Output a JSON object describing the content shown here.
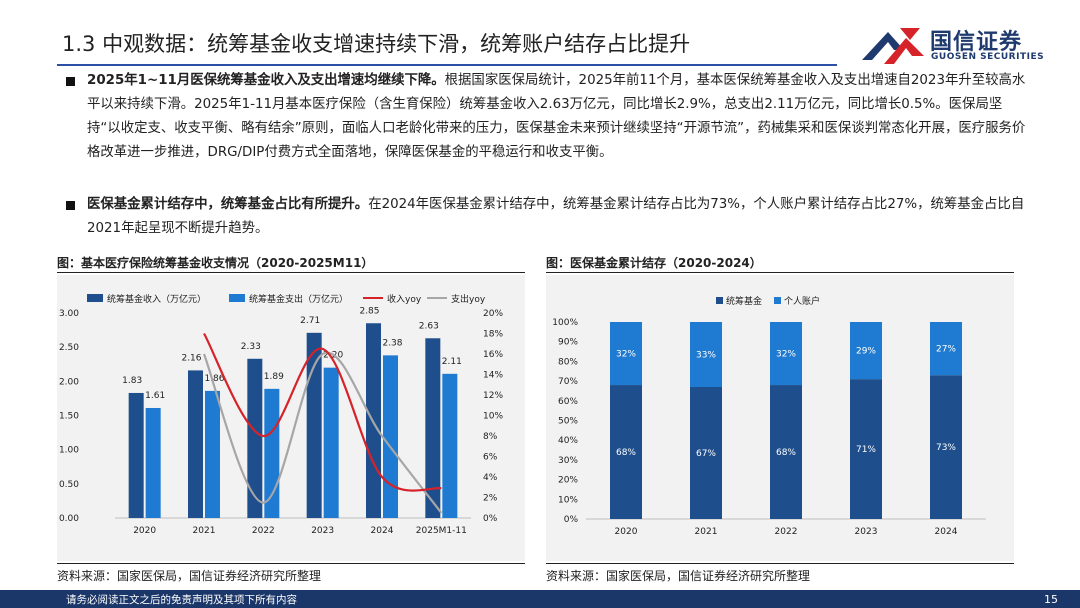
{
  "header": {
    "title": "1.3 中观数据：统筹基金收支增速持续下滑，统筹账户结存占比提升",
    "logo_cn": "国信证券",
    "logo_en": "GUOSEN SECURITIES"
  },
  "bullets": [
    {
      "bold": "2025年1~11月医保统筹基金收入及支出增速均继续下降。",
      "text": "根据国家医保局统计，2025年前11个月，基本医保统筹基金收入及支出增速自2023年升至较高水平以来持续下滑。2025年1-11月基本医疗保险（含生育保险）统筹基金收入2.63万亿元，同比增长2.9%，总支出2.11万亿元，同比增长0.5%。医保局坚持“以收定支、收支平衡、略有结余”原则，面临人口老龄化带来的压力，医保基金未来预计继续坚持“开源节流”，药械集采和医保谈判常态化开展，医疗服务价格改革进一步推进，DRG/DIP付费方式全面落地，保障医保基金的平稳运行和收支平衡。"
    },
    {
      "bold": "医保基金累计结存中，统筹基金占比有所提升。",
      "text": "在2024年医保基金累计结存中，统筹基金累计结存占比为73%，个人账户累计结存占比27%，统筹基金占比自2021年起呈现不断提升趋势。"
    }
  ],
  "figures": {
    "left_title": "图：基本医疗保险统筹基金收支情况（2020-2025M11）",
    "right_title": "图：医保基金累计结存（2020-2024）",
    "left_source": "资料来源：国家医保局，国信证券经济研究所整理",
    "right_source": "资料来源：国家医保局，国信证券经济研究所整理"
  },
  "footer": {
    "note": "请务必阅读正文之后的免责声明及其项下所有内容",
    "page": "15"
  },
  "colors": {
    "navy": "#1f4e8c",
    "blue": "#1f7ad1",
    "red": "#d6232a",
    "gray": "#a6a6a6",
    "title_rule": "#2b4fa3",
    "footer": "#1b3668"
  },
  "chart_data": [
    {
      "type": "bar",
      "title": "图：基本医疗保险统筹基金收支情况（2020-2025M11）",
      "categories": [
        "2020",
        "2021",
        "2022",
        "2023",
        "2024",
        "2025M1-11"
      ],
      "series": [
        {
          "name": "统筹基金收入（万亿元）",
          "axis": "left",
          "kind": "bar",
          "values": [
            1.83,
            2.16,
            2.33,
            2.71,
            2.85,
            2.63
          ],
          "labels": [
            "1.83",
            "2.16",
            "2.33",
            "2.71",
            "2.85",
            "2.63"
          ]
        },
        {
          "name": "统筹基金支出（万亿元）",
          "axis": "left",
          "kind": "bar",
          "values": [
            1.61,
            1.86,
            1.89,
            2.2,
            2.38,
            2.11
          ],
          "labels": [
            "1.61",
            "1.86",
            "1.89",
            "2.20",
            "2.38",
            "2.11"
          ]
        },
        {
          "name": "收入yoy",
          "axis": "right",
          "kind": "line",
          "values": [
            null,
            18.0,
            8.0,
            16.5,
            4.0,
            2.9
          ]
        },
        {
          "name": "支出yoy",
          "axis": "right",
          "kind": "line",
          "values": [
            null,
            16.0,
            1.5,
            16.0,
            8.0,
            0.5
          ]
        }
      ],
      "ylim_left": [
        0,
        3
      ],
      "yticks_left": [
        "0.00",
        "0.50",
        "1.00",
        "1.50",
        "2.00",
        "2.50",
        "3.00"
      ],
      "ylim_right": [
        0,
        20
      ],
      "yticks_right": [
        "0%",
        "2%",
        "4%",
        "6%",
        "8%",
        "10%",
        "12%",
        "14%",
        "16%",
        "18%",
        "20%"
      ],
      "legend": "top",
      "grid": false
    },
    {
      "type": "bar",
      "stacked": true,
      "percent": true,
      "title": "图：医保基金累计结存（2020-2024）",
      "categories": [
        "2020",
        "2021",
        "2022",
        "2023",
        "2024"
      ],
      "series": [
        {
          "name": "统筹基金",
          "values": [
            68,
            67,
            68,
            71,
            73
          ],
          "labels": [
            "68%",
            "67%",
            "68%",
            "71%",
            "73%"
          ]
        },
        {
          "name": "个人账户",
          "values": [
            32,
            33,
            32,
            29,
            27
          ],
          "labels": [
            "32%",
            "33%",
            "32%",
            "29%",
            "27%"
          ]
        }
      ],
      "ylim": [
        0,
        100
      ],
      "yticks": [
        "0%",
        "10%",
        "20%",
        "30%",
        "40%",
        "50%",
        "60%",
        "70%",
        "80%",
        "90%",
        "100%"
      ],
      "legend": "top",
      "grid": false
    }
  ]
}
